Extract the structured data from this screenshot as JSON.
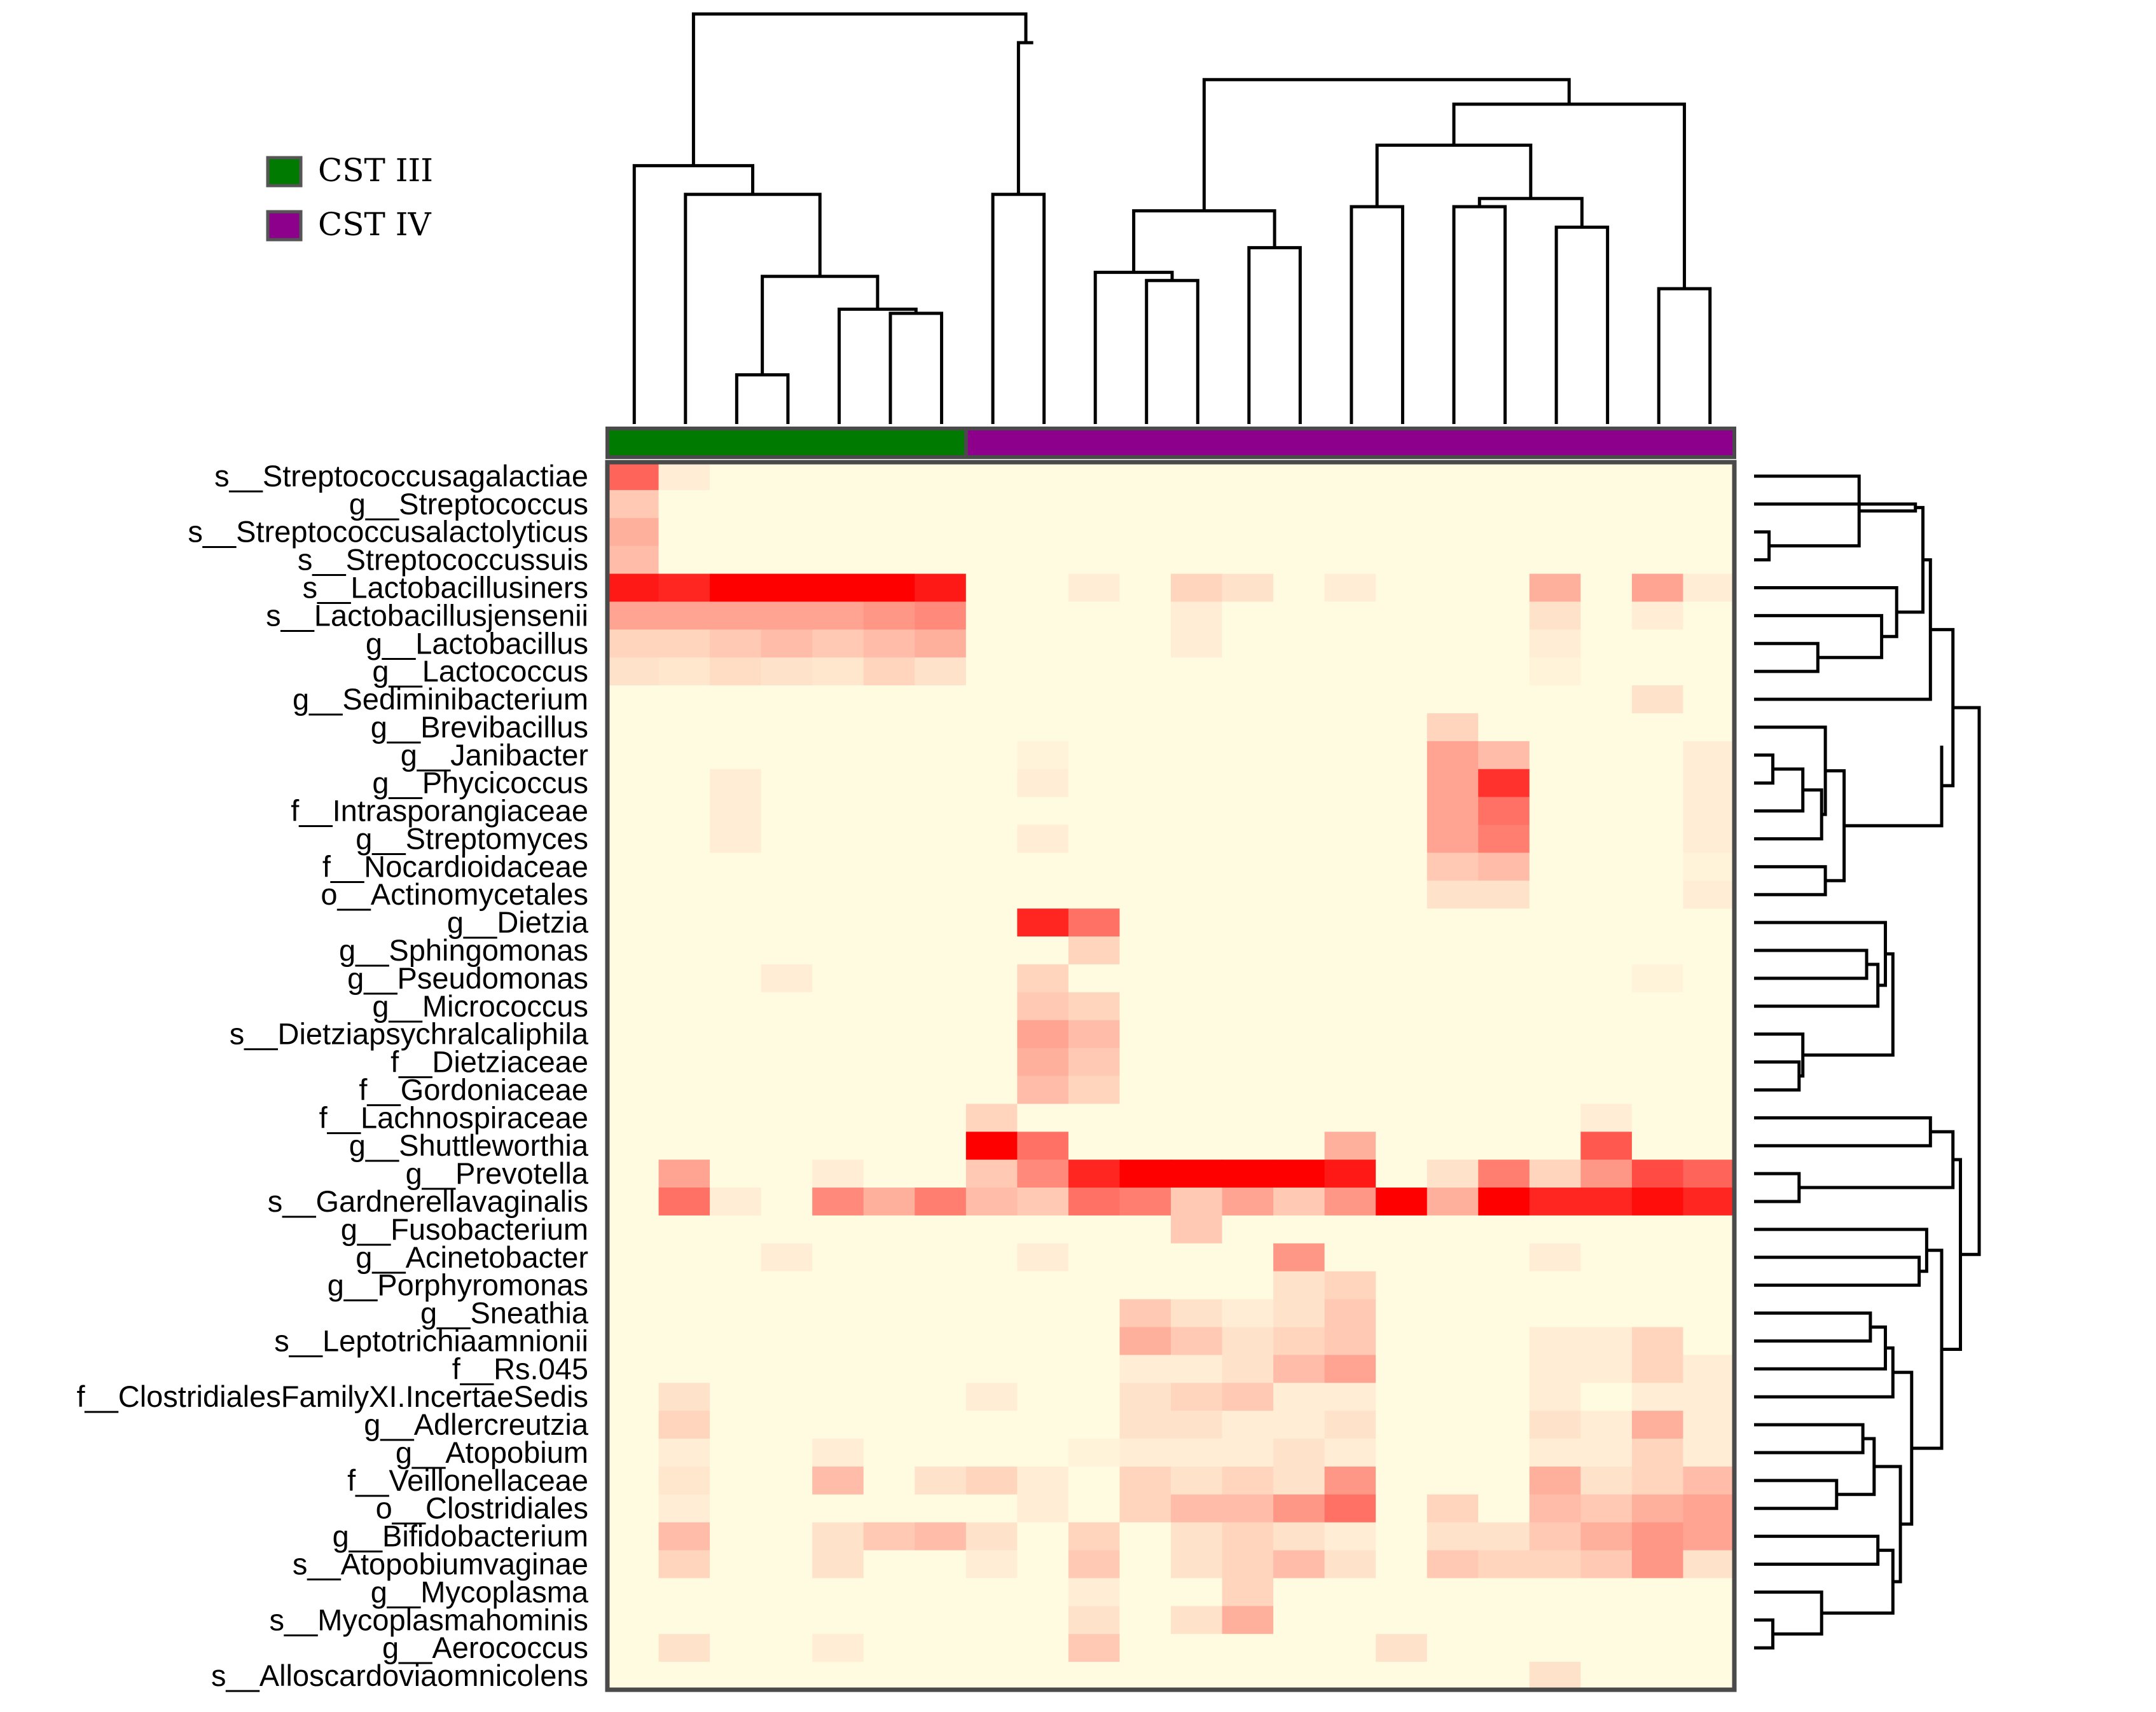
{
  "chart_data": {
    "type": "heatmap",
    "title": "",
    "legend": {
      "position": "top-left",
      "entries": [
        {
          "label": "CST III",
          "color": "#007a00"
        },
        {
          "label": "CST IV",
          "color": "#8c008c"
        }
      ]
    },
    "colors": {
      "low": "#fffbe0",
      "high": "#ff0000",
      "frame": "#4a4a4a",
      "dendrogram": "#000000"
    },
    "column_groups": [
      "CST III",
      "CST III",
      "CST III",
      "CST III",
      "CST III",
      "CST III",
      "CST III",
      "CST IV",
      "CST IV",
      "CST IV",
      "CST IV",
      "CST IV",
      "CST IV",
      "CST IV",
      "CST IV",
      "CST IV",
      "CST IV",
      "CST IV",
      "CST IV",
      "CST IV",
      "CST IV",
      "CST IV"
    ],
    "rows": [
      "s__Streptococcusagalactiae",
      "g__Streptococcus",
      "s__Streptococcusalactolyticus",
      "s__Streptococcussuis",
      "s__Lactobacillusiners",
      "s__Lactobacillusjensenii",
      "g__Lactobacillus",
      "g__Lactococcus",
      "g__Sediminibacterium",
      "g__Brevibacillus",
      "g__Janibacter",
      "g__Phycicoccus",
      "f__Intrasporangiaceae",
      "g__Streptomyces",
      "f__Nocardioidaceae",
      "o__Actinomycetales",
      "g__Dietzia",
      "g__Sphingomonas",
      "g__Pseudomonas",
      "g__Micrococcus",
      "s__Dietziapsychralcaliphila",
      "f__Dietziaceae",
      "f__Gordoniaceae",
      "f__Lachnospiraceae",
      "g__Shuttleworthia",
      "g__Prevotella",
      "s__Gardnerellavaginalis",
      "g__Fusobacterium",
      "g__Acinetobacter",
      "g__Porphyromonas",
      "g__Sneathia",
      "s__Leptotrichiaamnionii",
      "f__Rs.045",
      "f__ClostridialesFamilyXI.IncertaeSedis",
      "g__Adlercreutzia",
      "g__Atopobium",
      "f__Veillonellaceae",
      "o__Clostridiales",
      "g__Bifidobacterium",
      "s__Atopobiumvaginae",
      "g__Mycoplasma",
      "s__Mycoplasmahominis",
      "g__Aerococcus",
      "s__Alloscardoviaomnicolens"
    ],
    "values": [
      [
        0.6,
        0.05,
        0,
        0,
        0,
        0,
        0,
        0,
        0,
        0,
        0,
        0,
        0,
        0,
        0,
        0,
        0,
        0,
        0,
        0,
        0,
        0
      ],
      [
        0.2,
        0,
        0,
        0,
        0,
        0,
        0,
        0,
        0,
        0,
        0,
        0,
        0,
        0,
        0,
        0,
        0,
        0,
        0,
        0,
        0,
        0
      ],
      [
        0.3,
        0,
        0,
        0,
        0,
        0,
        0,
        0,
        0,
        0,
        0,
        0,
        0,
        0,
        0,
        0,
        0,
        0,
        0,
        0,
        0,
        0
      ],
      [
        0.25,
        0,
        0,
        0,
        0,
        0,
        0,
        0,
        0,
        0,
        0,
        0,
        0,
        0,
        0,
        0,
        0,
        0,
        0,
        0,
        0,
        0
      ],
      [
        0.9,
        0.85,
        1,
        1,
        1,
        1,
        0.9,
        0,
        0,
        0.05,
        0,
        0.15,
        0.1,
        0,
        0.05,
        0,
        0,
        0,
        0.3,
        0,
        0.35,
        0.05
      ],
      [
        0.35,
        0.35,
        0.35,
        0.35,
        0.35,
        0.4,
        0.45,
        0,
        0,
        0,
        0,
        0.05,
        0,
        0,
        0,
        0,
        0,
        0,
        0.1,
        0,
        0.05,
        0
      ],
      [
        0.15,
        0.15,
        0.2,
        0.25,
        0.2,
        0.25,
        0.3,
        0,
        0,
        0,
        0,
        0.05,
        0,
        0,
        0,
        0,
        0,
        0,
        0.05,
        0,
        0,
        0
      ],
      [
        0.1,
        0.08,
        0.12,
        0.1,
        0.08,
        0.15,
        0.1,
        0,
        0,
        0,
        0,
        0,
        0,
        0,
        0,
        0,
        0,
        0,
        0.03,
        0,
        0,
        0
      ],
      [
        0,
        0,
        0,
        0,
        0,
        0,
        0,
        0,
        0,
        0,
        0,
        0,
        0,
        0,
        0,
        0,
        0,
        0,
        0,
        0,
        0.1,
        0
      ],
      [
        0,
        0,
        0,
        0,
        0,
        0,
        0,
        0,
        0,
        0,
        0,
        0,
        0,
        0,
        0,
        0,
        0.15,
        0,
        0,
        0,
        0,
        0
      ],
      [
        0,
        0,
        0,
        0,
        0,
        0,
        0,
        0,
        0.03,
        0,
        0,
        0,
        0,
        0,
        0,
        0,
        0.35,
        0.25,
        0,
        0,
        0,
        0.05
      ],
      [
        0,
        0,
        0.05,
        0,
        0,
        0,
        0,
        0,
        0.05,
        0,
        0,
        0,
        0,
        0,
        0,
        0,
        0.35,
        0.8,
        0,
        0,
        0,
        0.05
      ],
      [
        0,
        0,
        0.05,
        0,
        0,
        0,
        0,
        0,
        0,
        0,
        0,
        0,
        0,
        0,
        0,
        0,
        0.35,
        0.55,
        0,
        0,
        0,
        0.05
      ],
      [
        0,
        0,
        0.05,
        0,
        0,
        0,
        0,
        0,
        0.05,
        0,
        0,
        0,
        0,
        0,
        0,
        0,
        0.35,
        0.5,
        0,
        0,
        0,
        0.05
      ],
      [
        0,
        0,
        0,
        0,
        0,
        0,
        0,
        0,
        0,
        0,
        0,
        0,
        0,
        0,
        0,
        0,
        0.2,
        0.25,
        0,
        0,
        0,
        0.03
      ],
      [
        0,
        0,
        0,
        0,
        0,
        0,
        0,
        0,
        0,
        0,
        0,
        0,
        0,
        0,
        0,
        0,
        0.1,
        0.1,
        0,
        0,
        0,
        0.05
      ],
      [
        0,
        0,
        0,
        0,
        0,
        0,
        0,
        0,
        0.85,
        0.55,
        0,
        0,
        0,
        0,
        0,
        0,
        0,
        0,
        0,
        0,
        0,
        0
      ],
      [
        0,
        0,
        0,
        0,
        0,
        0,
        0,
        0,
        0,
        0.15,
        0,
        0,
        0,
        0,
        0,
        0,
        0,
        0,
        0,
        0,
        0,
        0
      ],
      [
        0,
        0,
        0,
        0.05,
        0,
        0,
        0,
        0,
        0.15,
        0,
        0,
        0,
        0,
        0,
        0,
        0,
        0,
        0,
        0,
        0,
        0.03,
        0
      ],
      [
        0,
        0,
        0,
        0,
        0,
        0,
        0,
        0,
        0.2,
        0.15,
        0,
        0,
        0,
        0,
        0,
        0,
        0,
        0,
        0,
        0,
        0,
        0
      ],
      [
        0,
        0,
        0,
        0,
        0,
        0,
        0,
        0,
        0.35,
        0.25,
        0,
        0,
        0,
        0,
        0,
        0,
        0,
        0,
        0,
        0,
        0,
        0
      ],
      [
        0,
        0,
        0,
        0,
        0,
        0,
        0,
        0,
        0.3,
        0.2,
        0,
        0,
        0,
        0,
        0,
        0,
        0,
        0,
        0,
        0,
        0,
        0
      ],
      [
        0,
        0,
        0,
        0,
        0,
        0,
        0,
        0,
        0.25,
        0.15,
        0,
        0,
        0,
        0,
        0,
        0,
        0,
        0,
        0,
        0,
        0,
        0
      ],
      [
        0,
        0,
        0,
        0,
        0,
        0,
        0,
        0.15,
        0,
        0,
        0,
        0,
        0,
        0,
        0,
        0,
        0,
        0,
        0,
        0.05,
        0,
        0
      ],
      [
        0,
        0,
        0,
        0,
        0,
        0,
        0,
        1,
        0.55,
        0,
        0,
        0,
        0,
        0,
        0.3,
        0,
        0,
        0,
        0,
        0.65,
        0,
        0
      ],
      [
        0,
        0.35,
        0,
        0,
        0.05,
        0,
        0,
        0.2,
        0.45,
        0.85,
        1,
        1,
        1,
        1,
        0.9,
        0,
        0.1,
        0.5,
        0.15,
        0.4,
        0.7,
        0.6
      ],
      [
        0,
        0.55,
        0.05,
        0,
        0.45,
        0.3,
        0.5,
        0.25,
        0.2,
        0.55,
        0.5,
        0.2,
        0.35,
        0.2,
        0.4,
        1,
        0.3,
        1,
        0.85,
        0.85,
        0.95,
        0.85
      ],
      [
        0,
        0,
        0,
        0,
        0,
        0,
        0,
        0,
        0,
        0,
        0,
        0.2,
        0,
        0,
        0,
        0,
        0,
        0,
        0,
        0,
        0,
        0
      ],
      [
        0,
        0,
        0,
        0.05,
        0,
        0,
        0,
        0,
        0.05,
        0,
        0,
        0,
        0,
        0.4,
        0,
        0,
        0,
        0,
        0.05,
        0,
        0,
        0
      ],
      [
        0,
        0,
        0,
        0,
        0,
        0,
        0,
        0,
        0,
        0,
        0,
        0,
        0,
        0.1,
        0.15,
        0,
        0,
        0,
        0,
        0,
        0,
        0
      ],
      [
        0,
        0,
        0,
        0,
        0,
        0,
        0,
        0,
        0,
        0,
        0.2,
        0.1,
        0.05,
        0.1,
        0.2,
        0,
        0,
        0,
        0,
        0,
        0,
        0
      ],
      [
        0,
        0,
        0,
        0,
        0,
        0,
        0,
        0,
        0,
        0,
        0.3,
        0.2,
        0.1,
        0.15,
        0.2,
        0,
        0,
        0,
        0.05,
        0.05,
        0.15,
        0
      ],
      [
        0,
        0,
        0,
        0,
        0,
        0,
        0,
        0,
        0,
        0,
        0.05,
        0.05,
        0.1,
        0.25,
        0.35,
        0,
        0,
        0,
        0.05,
        0.05,
        0.15,
        0.05
      ],
      [
        0,
        0.1,
        0,
        0,
        0,
        0,
        0,
        0.05,
        0,
        0,
        0.1,
        0.15,
        0.2,
        0.05,
        0.05,
        0,
        0,
        0,
        0.05,
        0,
        0.05,
        0.05
      ],
      [
        0,
        0.15,
        0,
        0,
        0,
        0,
        0,
        0,
        0,
        0,
        0.1,
        0.1,
        0.05,
        0.05,
        0.1,
        0,
        0,
        0,
        0.1,
        0.05,
        0.3,
        0.05
      ],
      [
        0,
        0.05,
        0,
        0,
        0.05,
        0,
        0,
        0,
        0,
        0.03,
        0.05,
        0.05,
        0.05,
        0.1,
        0.05,
        0,
        0,
        0,
        0.05,
        0.05,
        0.15,
        0.05
      ],
      [
        0,
        0.08,
        0,
        0,
        0.25,
        0,
        0.1,
        0.15,
        0.05,
        0,
        0.15,
        0.1,
        0.15,
        0.1,
        0.4,
        0,
        0,
        0,
        0.3,
        0.1,
        0.15,
        0.25
      ],
      [
        0,
        0.05,
        0,
        0,
        0,
        0,
        0,
        0,
        0.05,
        0,
        0.15,
        0.25,
        0.25,
        0.4,
        0.55,
        0,
        0.15,
        0,
        0.25,
        0.2,
        0.3,
        0.35
      ],
      [
        0,
        0.25,
        0,
        0,
        0.1,
        0.2,
        0.25,
        0.1,
        0,
        0.15,
        0,
        0.1,
        0.15,
        0.1,
        0.05,
        0,
        0.1,
        0.1,
        0.2,
        0.3,
        0.4,
        0.35
      ],
      [
        0,
        0.15,
        0,
        0,
        0.1,
        0,
        0,
        0.05,
        0,
        0.2,
        0,
        0.1,
        0.15,
        0.25,
        0.1,
        0,
        0.2,
        0.15,
        0.15,
        0.2,
        0.4,
        0.1
      ],
      [
        0,
        0,
        0,
        0,
        0,
        0,
        0,
        0,
        0,
        0.05,
        0,
        0,
        0.15,
        0,
        0,
        0,
        0,
        0,
        0,
        0,
        0,
        0
      ],
      [
        0,
        0,
        0,
        0,
        0,
        0,
        0,
        0,
        0,
        0.1,
        0,
        0.1,
        0.3,
        0,
        0,
        0,
        0,
        0,
        0,
        0,
        0,
        0
      ],
      [
        0,
        0.1,
        0,
        0,
        0.05,
        0,
        0,
        0,
        0,
        0.2,
        0,
        0,
        0,
        0,
        0,
        0.1,
        0,
        0,
        0,
        0,
        0,
        0
      ],
      [
        0,
        0,
        0,
        0,
        0,
        0,
        0,
        0,
        0,
        0,
        0,
        0,
        0,
        0,
        0,
        0,
        0,
        0,
        0.1,
        0,
        0,
        0
      ]
    ]
  }
}
